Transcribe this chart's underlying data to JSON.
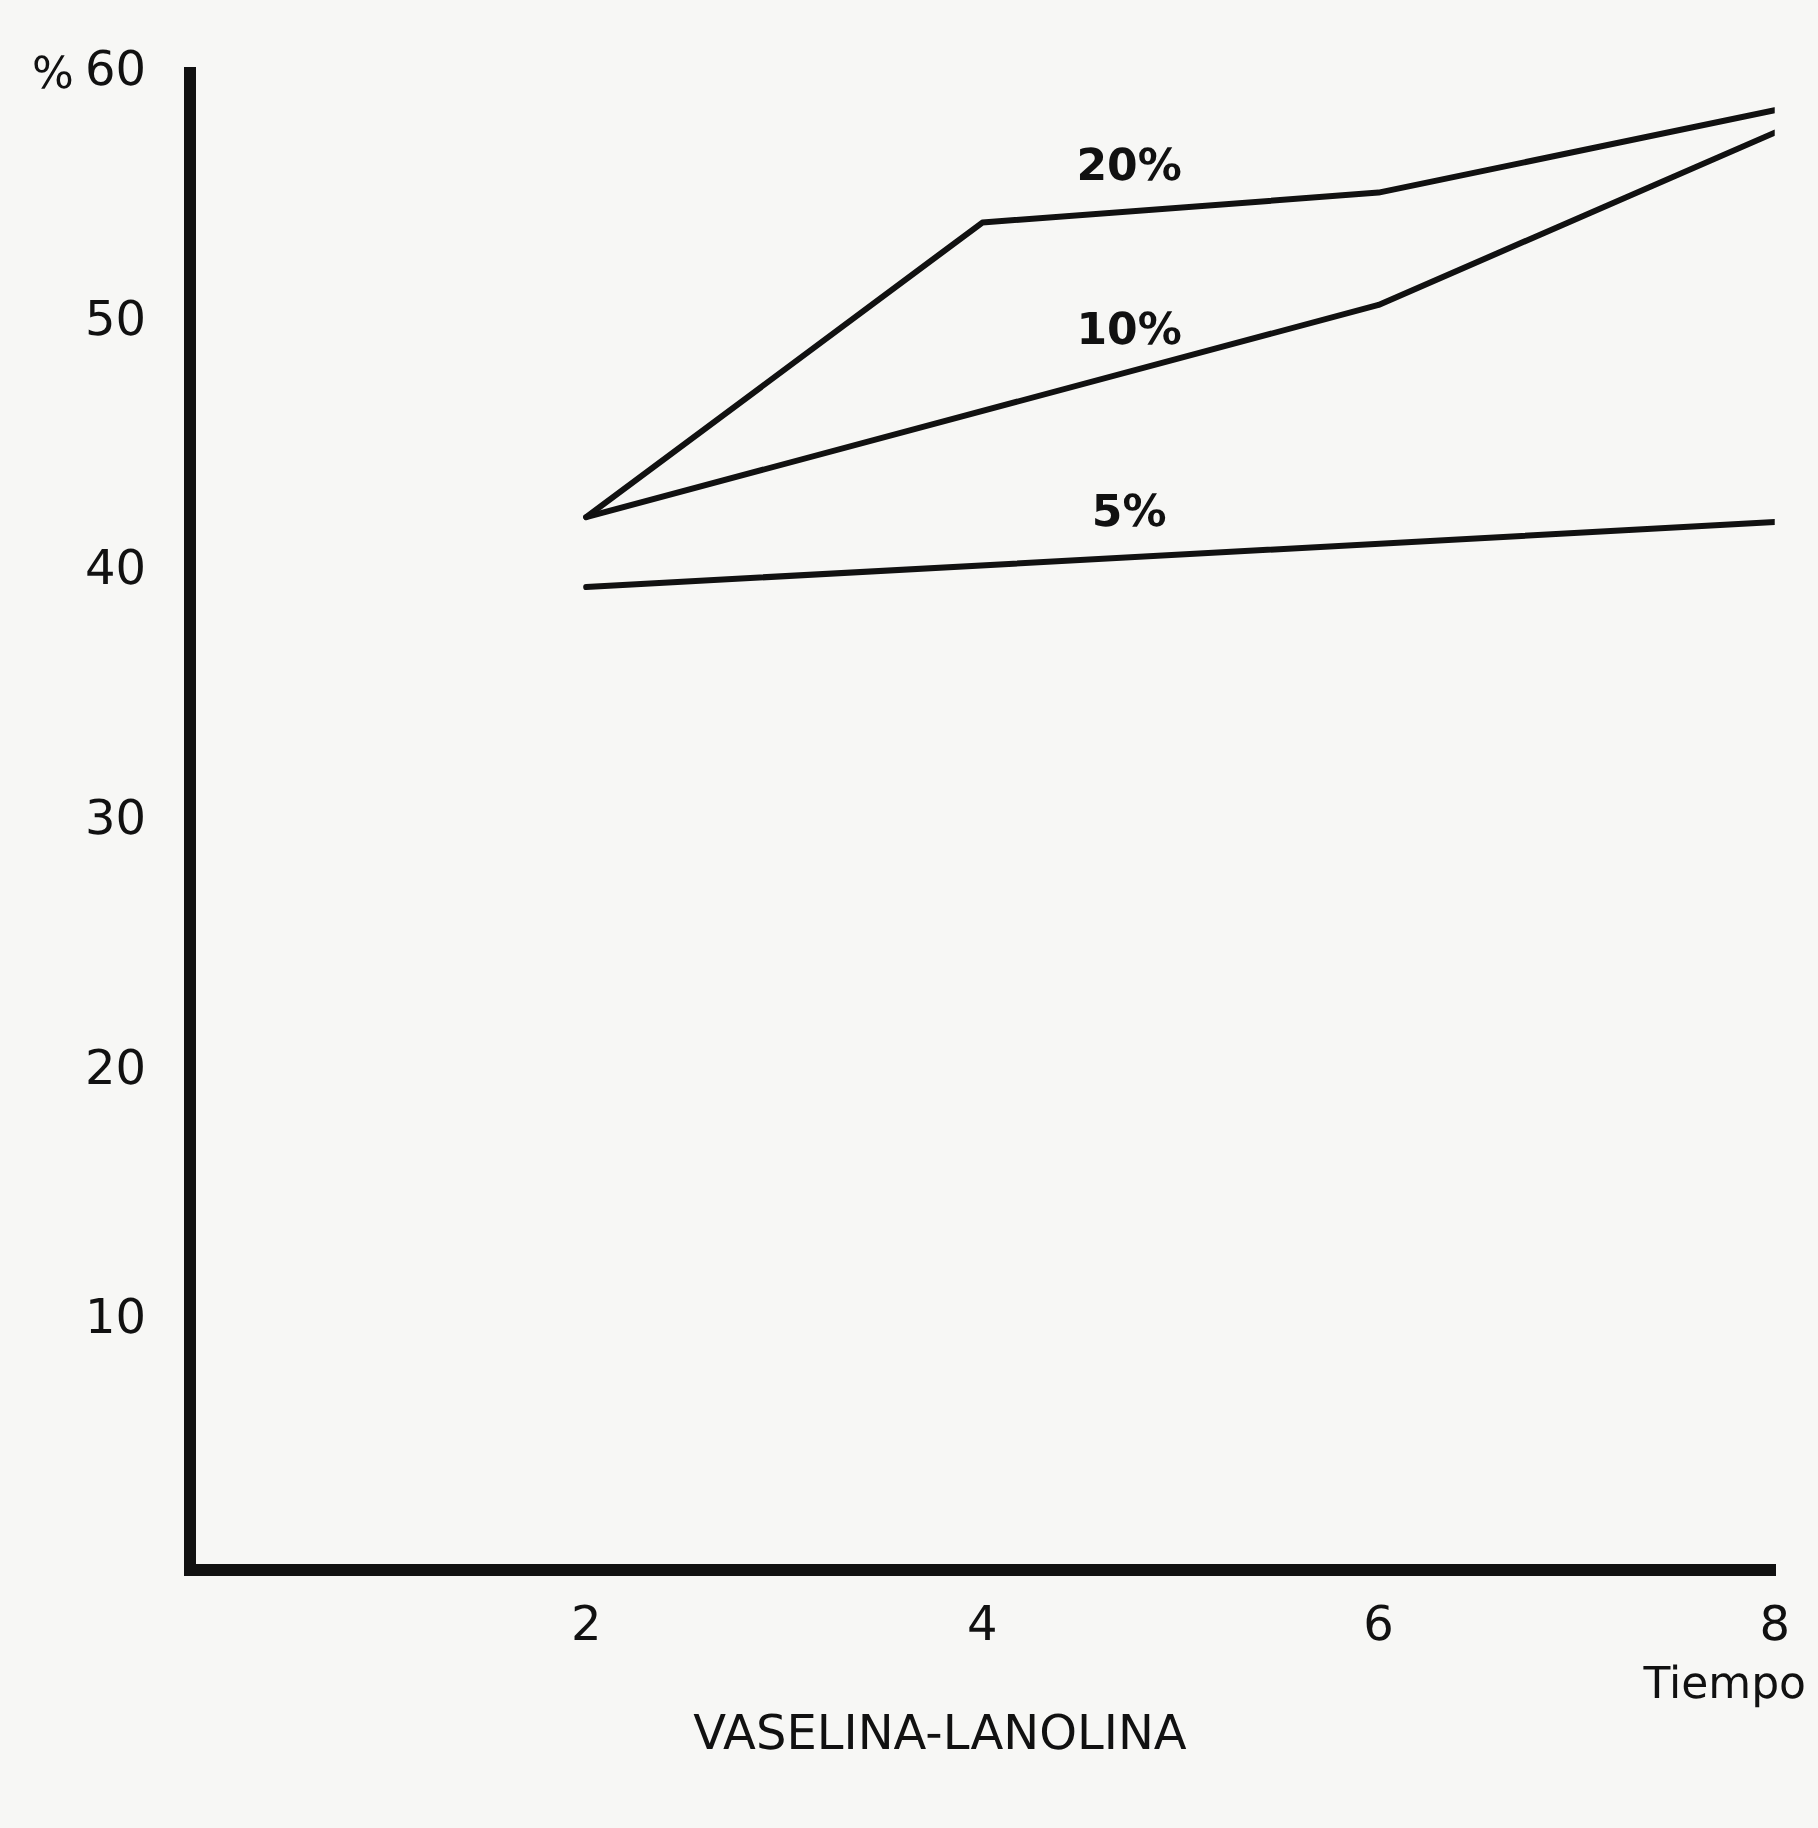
{
  "chart_data": {
    "type": "line",
    "title": "VASELINA-LANOLINA",
    "xlabel": "Tiempo",
    "ylabel": "%",
    "xlim": [
      0,
      8
    ],
    "xticks": [
      2,
      4,
      6,
      8
    ],
    "ylim": [
      0,
      60
    ],
    "yticks": [
      10,
      20,
      30,
      40,
      50,
      60
    ],
    "grid": false,
    "legend": false,
    "marker": "none",
    "line_style": "solid",
    "series": [
      {
        "name": "20%",
        "color": "#111111",
        "x": [
          2,
          4,
          6,
          8
        ],
        "values": [
          42.2,
          54.0,
          55.2,
          58.5
        ]
      },
      {
        "name": "10%",
        "color": "#111111",
        "x": [
          2,
          6,
          8
        ],
        "values": [
          42.2,
          50.7,
          57.6
        ]
      },
      {
        "name": "5%",
        "color": "#111111",
        "x": [
          2,
          8
        ],
        "values": [
          39.4,
          42.0
        ]
      }
    ]
  }
}
